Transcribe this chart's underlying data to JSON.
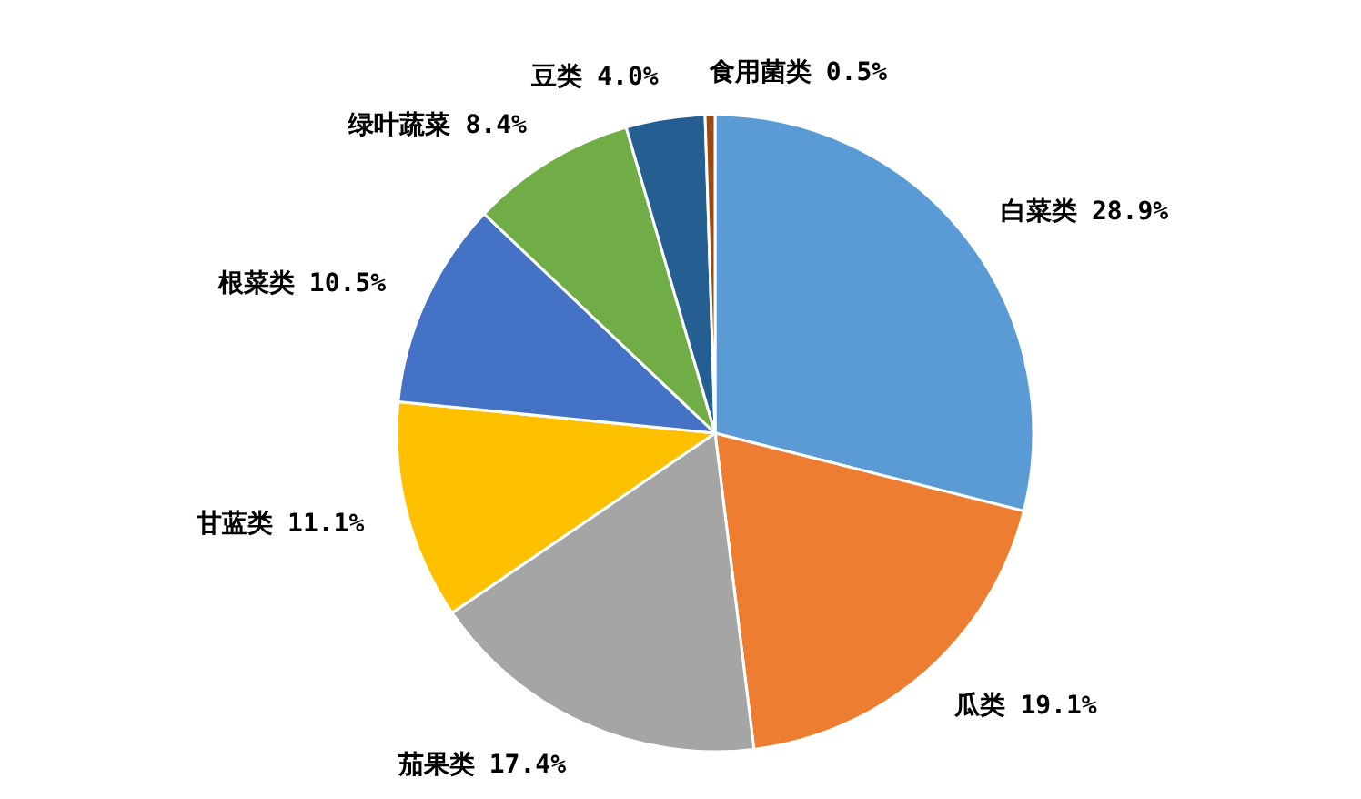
{
  "chart_data": {
    "type": "pie",
    "categories": [
      "白菜类",
      "瓜类",
      "茄果类",
      "甘蓝类",
      "根菜类",
      "绿叶蔬菜",
      "豆类",
      "食用菌类"
    ],
    "values": [
      28.9,
      19.1,
      17.4,
      11.1,
      10.5,
      8.4,
      4.0,
      0.5
    ],
    "colors": [
      "#5b9bd5",
      "#ed7d31",
      "#a5a5a5",
      "#ffc000",
      "#4472c4",
      "#70ad47",
      "#255e91",
      "#9e480e"
    ],
    "value_labels": [
      "28.9%",
      "19.1%",
      "17.4%",
      "11.1%",
      "10.5%",
      "8.4%",
      "4.0%",
      "0.5%"
    ]
  }
}
